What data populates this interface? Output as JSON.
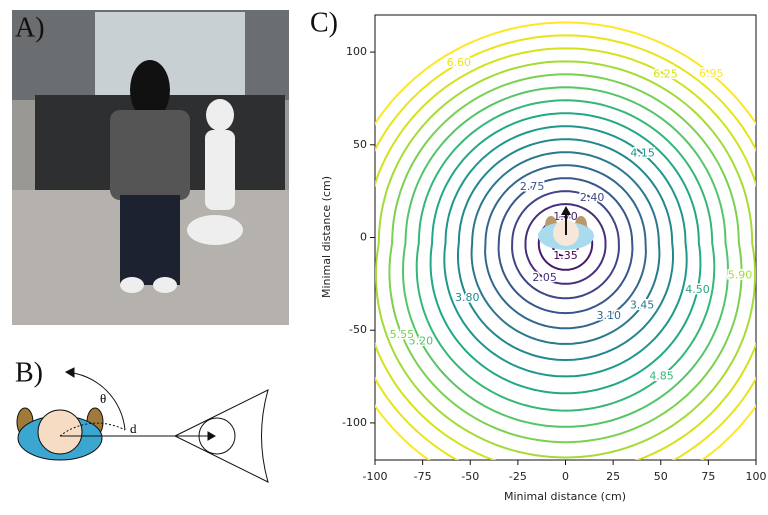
{
  "panels": {
    "a": "A)",
    "b": "B)",
    "c": "C)"
  },
  "diagram": {
    "angle_label": "θ",
    "distance_label": "d"
  },
  "chart_data": {
    "type": "contour",
    "xlabel": "Minimal distance (cm)",
    "ylabel": "Minimal distance (cm)",
    "xlim": [
      -100,
      100
    ],
    "ylim": [
      -120,
      120
    ],
    "xticks": [
      -100,
      -75,
      -50,
      -25,
      0,
      25,
      50,
      75,
      100
    ],
    "yticks": [
      -100,
      -50,
      0,
      50,
      100
    ],
    "levels": [
      {
        "value": 1.35,
        "label": "1.35"
      },
      {
        "value": 1.7,
        "label": "1.70"
      },
      {
        "value": 2.05,
        "label": "2.05"
      },
      {
        "value": 2.4,
        "label": "2.40"
      },
      {
        "value": 2.75,
        "label": "2.75"
      },
      {
        "value": 3.1,
        "label": "3.10"
      },
      {
        "value": 3.45,
        "label": "3.45"
      },
      {
        "value": 3.8,
        "label": "3.80"
      },
      {
        "value": 4.15,
        "label": "4.15"
      },
      {
        "value": 4.5,
        "label": "4.50"
      },
      {
        "value": 4.85,
        "label": "4.85"
      },
      {
        "value": 5.2,
        "label": "5.20"
      },
      {
        "value": 5.55,
        "label": "5.55"
      },
      {
        "value": 5.9,
        "label": "5.90"
      },
      {
        "value": 6.25,
        "label": "6.25"
      },
      {
        "value": 6.6,
        "label": "6.60"
      },
      {
        "value": 6.95,
        "label": "6.95"
      }
    ],
    "level_colors": [
      "#440154",
      "#481a6c",
      "#472f7d",
      "#414487",
      "#39568c",
      "#31688e",
      "#2a788e",
      "#23888e",
      "#1f988b",
      "#22a884",
      "#35b779",
      "#54c568",
      "#7ad151",
      "#a5db36",
      "#d2e21b",
      "#e8e419",
      "#fde725"
    ]
  }
}
